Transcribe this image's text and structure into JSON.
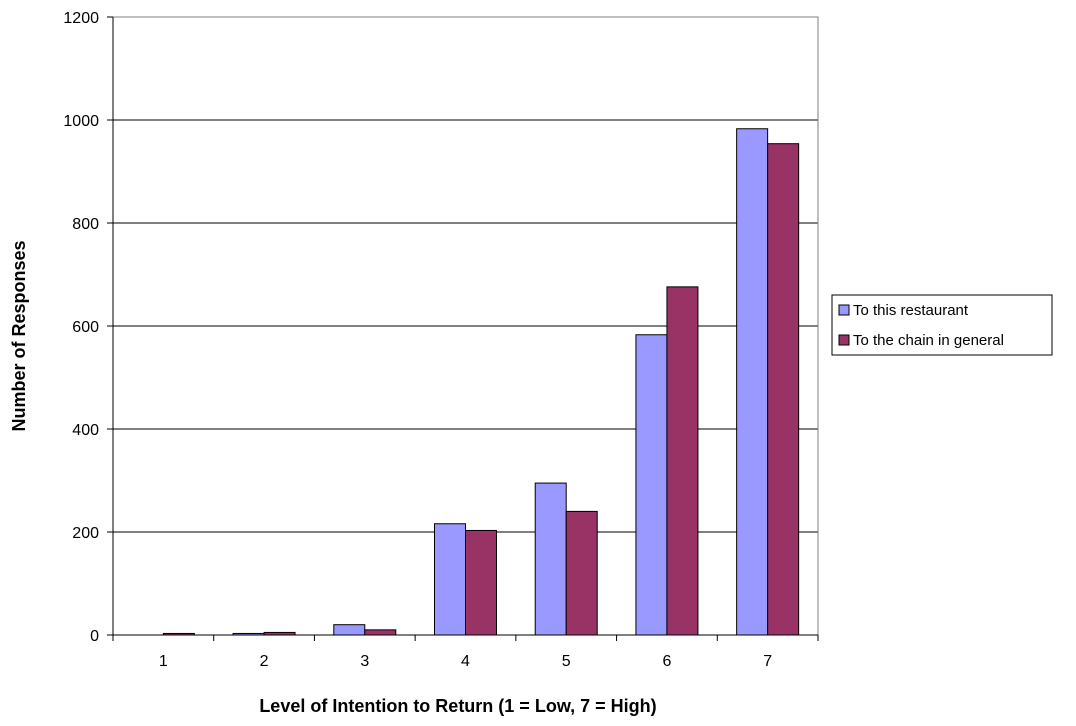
{
  "chart_data": {
    "type": "bar",
    "categories": [
      "1",
      "2",
      "3",
      "4",
      "5",
      "6",
      "7"
    ],
    "series": [
      {
        "name": "To this restaurant",
        "values": [
          0,
          3,
          20,
          216,
          295,
          583,
          983
        ],
        "color": "#9999ff"
      },
      {
        "name": "To the chain in general",
        "values": [
          3,
          5,
          10,
          203,
          240,
          676,
          954
        ],
        "color": "#993366"
      }
    ],
    "xlabel": "Level of Intention to Return (1 = Low, 7 = High)",
    "ylabel": "Number of Responses",
    "ylim": [
      0,
      1200
    ],
    "yticks": [
      "0",
      "200",
      "400",
      "600",
      "800",
      "1000",
      "1200"
    ],
    "grid": true,
    "legend_position": "right"
  }
}
